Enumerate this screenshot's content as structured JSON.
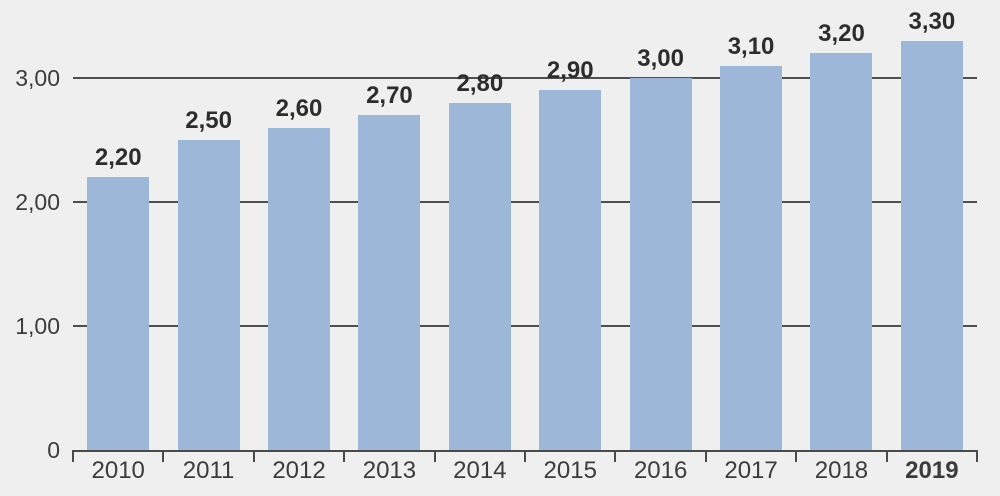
{
  "chart": {
    "background_color": "#f0eff0",
    "bar_color": "#9cb7d8",
    "axis_color": "#4a4a4a",
    "grid_color": "#4f4f4f",
    "value_label_color": "#2d2d2d",
    "tick_label_color": "#3c3c3c"
  },
  "chart_data": {
    "type": "bar",
    "categories": [
      "2010",
      "2011",
      "2012",
      "2013",
      "2014",
      "2015",
      "2016",
      "2017",
      "2018",
      "2019"
    ],
    "values": [
      2.2,
      2.5,
      2.6,
      2.7,
      2.8,
      2.9,
      3.0,
      3.1,
      3.2,
      3.3
    ],
    "value_labels": [
      "2,20",
      "2,50",
      "2,60",
      "2,70",
      "2,80",
      "2,90",
      "3,00",
      "3,10",
      "3,20",
      "3,30"
    ],
    "highlighted_category": "2019",
    "y_ticks": [
      {
        "value": 0,
        "label": "0"
      },
      {
        "value": 1,
        "label": "1,00"
      },
      {
        "value": 2,
        "label": "2,00"
      },
      {
        "value": 3,
        "label": "3,00"
      }
    ],
    "title": "",
    "xlabel": "",
    "ylabel": "",
    "ylim": [
      0,
      3.63
    ],
    "grid": "horizontal-behind-bars",
    "legend": "none",
    "decimal_separator": ","
  }
}
